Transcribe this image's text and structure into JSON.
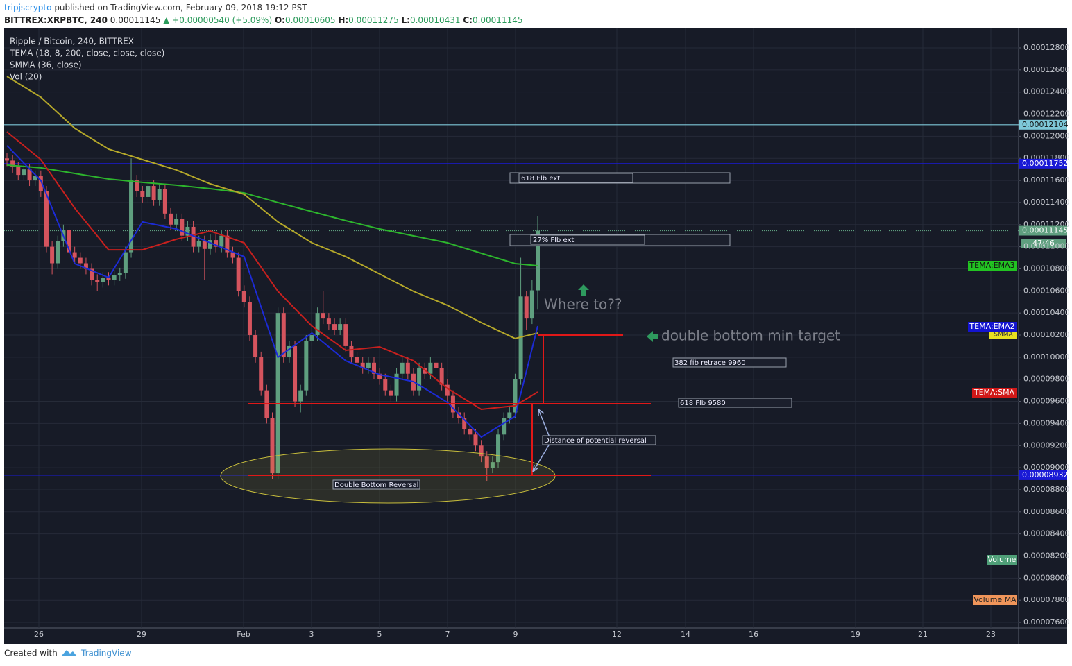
{
  "header": {
    "author": "tripjscrypto",
    "published": "published on TradingView.com, February 09, 2018 19:12 PST",
    "symbol": "BITTREX:XRPBTC, 240",
    "last": "0.00011145",
    "change": "▲ +0.00000540 (+5.09%)",
    "ohlc": [
      {
        "key": "O:",
        "value": "0.00010605"
      },
      {
        "key": "H:",
        "value": "0.00011275"
      },
      {
        "key": "L:",
        "value": "0.00010431"
      },
      {
        "key": "C:",
        "value": "0.00011145"
      }
    ]
  },
  "chart_data": {
    "type": "candlestick",
    "legend": [
      "Ripple / Bitcoin, 240, BITTREX",
      "TEMA (18, 8, 200, close, close, close)",
      "SMMA (36, close)",
      "Vol (20)"
    ],
    "xticks": [
      "26",
      "29",
      "Feb",
      "3",
      "5",
      "7",
      "9",
      "12",
      "14",
      "16",
      "19",
      "21",
      "23"
    ],
    "ylim": [
      7.55e-05,
      0.00012982
    ],
    "yticks": [
      {
        "value": 7.6e-05,
        "label": "0.00007600"
      },
      {
        "value": 7.8e-05,
        "label": "0.00007800"
      },
      {
        "value": 8e-05,
        "label": "0.00008000"
      },
      {
        "value": 8.2e-05,
        "label": "0.00008200"
      },
      {
        "value": 8.4e-05,
        "label": "0.00008400"
      },
      {
        "value": 8.6e-05,
        "label": "0.00008600"
      },
      {
        "value": 8.8e-05,
        "label": "0.00008800"
      },
      {
        "value": 9e-05,
        "label": "0.00009000"
      },
      {
        "value": 9.2e-05,
        "label": "0.00009200"
      },
      {
        "value": 9.4e-05,
        "label": "0.00009400"
      },
      {
        "value": 9.6e-05,
        "label": "0.00009600"
      },
      {
        "value": 9.8e-05,
        "label": "0.00009800"
      },
      {
        "value": 0.0001,
        "label": "0.00010000"
      },
      {
        "value": 0.000102,
        "label": "0.00010200"
      },
      {
        "value": 0.000104,
        "label": "0.00010400"
      },
      {
        "value": 0.000106,
        "label": "0.00010600"
      },
      {
        "value": 0.000108,
        "label": "0.00010800"
      },
      {
        "value": 0.00011,
        "label": "0.00011000"
      },
      {
        "value": 0.000112,
        "label": "0.00011200"
      },
      {
        "value": 0.000114,
        "label": "0.00011400"
      },
      {
        "value": 0.000116,
        "label": "0.00011600"
      },
      {
        "value": 0.000118,
        "label": "0.00011800"
      },
      {
        "value": 0.00012,
        "label": "0.00012000"
      },
      {
        "value": 0.000122,
        "label": "0.00012200"
      },
      {
        "value": 0.000124,
        "label": "0.00012400"
      },
      {
        "value": 0.000126,
        "label": "0.00012600"
      },
      {
        "value": 0.000128,
        "label": "0.00012800"
      }
    ],
    "grid": true,
    "up_color": "#5f9f7f",
    "down_color": "#d5545e",
    "open": [
      0.000118,
      0.0001178,
      0.0001172,
      0.0001165,
      0.000117,
      0.000116,
      0.0001164,
      0.000115,
      0.00011,
      0.0001085,
      0.0001105,
      0.0001115,
      0.0001095,
      0.000109,
      0.0001085,
      0.000108,
      0.000107,
      0.0001068,
      0.0001072,
      0.000107,
      0.0001074,
      0.0001076,
      0.0001095,
      0.000116,
      0.000115,
      0.0001145,
      0.0001155,
      0.0001142,
      0.0001152,
      0.000113,
      0.000112,
      0.0001125,
      0.000111,
      0.0001118,
      0.00011,
      0.0001105,
      0.0001098,
      0.0001106,
      0.00011,
      0.000111,
      0.0001095,
      0.000109,
      0.000106,
      0.000105,
      0.000102,
      0.0001,
      9.7e-05,
      9.45e-05,
      8.95e-05,
      0.000104,
      0.0001,
      0.000101,
      9.6e-05,
      9.7e-05,
      0.0001015,
      0.000102,
      0.000104,
      0.0001035,
      0.000103,
      0.0001025,
      0.000103,
      0.000101,
      0.0001,
      9.95e-05,
      9.9e-05,
      9.95e-05,
      9.85e-05,
      9.8e-05,
      9.7e-05,
      9.65e-05,
      9.85e-05,
      9.95e-05,
      9.85e-05,
      9.7e-05,
      9.9e-05,
      9.85e-05,
      9.95e-05,
      9.9e-05,
      9.75e-05,
      9.65e-05,
      9.5e-05,
      9.45e-05,
      9.35e-05,
      9.3e-05,
      9.2e-05,
      9.1e-05,
      9e-05,
      9.05e-05,
      9.3e-05,
      9.45e-05,
      9.5e-05,
      9.8e-05,
      0.0001055,
      0.0001035,
      0.00010605
    ],
    "high": [
      0.0001185,
      0.0001183,
      0.0001177,
      0.0001175,
      0.0001175,
      0.0001169,
      0.0001169,
      0.0001155,
      0.0001105,
      0.000111,
      0.000112,
      0.000112,
      0.00011,
      0.0001095,
      0.000109,
      0.0001085,
      0.0001075,
      0.0001077,
      0.0001077,
      0.0001079,
      0.0001081,
      0.00011,
      0.000118,
      0.0001165,
      0.0001155,
      0.000116,
      0.000116,
      0.0001157,
      0.0001157,
      0.0001135,
      0.000113,
      0.000113,
      0.0001123,
      0.0001123,
      0.000111,
      0.000111,
      0.0001111,
      0.0001111,
      0.0001115,
      0.0001115,
      0.00011,
      0.0001095,
      0.0001065,
      0.0001055,
      0.0001025,
      0.0001005,
      9.75e-05,
      9.5e-05,
      0.0001045,
      0.0001045,
      0.0001015,
      0.0001015,
      9.75e-05,
      0.000102,
      0.000107,
      0.0001045,
      0.000106,
      0.000104,
      0.0001035,
      0.0001035,
      0.0001035,
      0.0001015,
      0.0001005,
      0.0001,
      0.0001,
      0.0001,
      9.9e-05,
      9.85e-05,
      9.75e-05,
      9.9e-05,
      0.0001,
      0.0001,
      9.9e-05,
      9.95e-05,
      9.95e-05,
      0.0001,
      0.0001,
      9.95e-05,
      9.8e-05,
      9.7e-05,
      9.55e-05,
      9.5e-05,
      9.4e-05,
      9.35e-05,
      9.25e-05,
      9.15e-05,
      9.1e-05,
      9.35e-05,
      9.5e-05,
      9.55e-05,
      9.85e-05,
      0.000109,
      0.000106,
      0.000107,
      0.00011275
    ],
    "low": [
      0.0001173,
      0.0001167,
      0.000116,
      0.000116,
      0.0001155,
      0.0001155,
      0.0001145,
      0.0001095,
      0.0001075,
      0.000108,
      0.00011,
      0.000109,
      0.0001085,
      0.000108,
      0.0001075,
      0.0001065,
      0.000106,
      0.0001063,
      0.0001065,
      0.0001065,
      0.0001069,
      0.0001071,
      0.000109,
      0.0001145,
      0.000114,
      0.000114,
      0.0001137,
      0.0001137,
      0.0001125,
      0.0001115,
      0.0001115,
      0.0001105,
      0.0001105,
      0.0001095,
      0.0001095,
      0.000107,
      0.0001093,
      0.0001095,
      0.0001095,
      0.000109,
      0.0001085,
      0.0001055,
      0.0001045,
      0.0001015,
      9.95e-05,
      9.65e-05,
      9.4e-05,
      8.9e-05,
      8.9e-05,
      9.95e-05,
      9.95e-05,
      9.55e-05,
      9.5e-05,
      9.65e-05,
      0.000101,
      0.0001015,
      0.000103,
      0.0001025,
      0.000102,
      0.000102,
      0.0001005,
      9.95e-05,
      9.9e-05,
      9.85e-05,
      9.85e-05,
      9.8e-05,
      9.75e-05,
      9.65e-05,
      9.6e-05,
      9.6e-05,
      9.8e-05,
      9.8e-05,
      9.65e-05,
      9.65e-05,
      9.8e-05,
      9.8e-05,
      9.85e-05,
      9.7e-05,
      9.6e-05,
      9.45e-05,
      9.4e-05,
      9.3e-05,
      9.25e-05,
      9.15e-05,
      9.05e-05,
      8.88e-05,
      8.95e-05,
      9e-05,
      9.25e-05,
      9.4e-05,
      9.45e-05,
      9.75e-05,
      0.0001025,
      0.000103,
      0.00010431
    ],
    "close": [
      0.0001178,
      0.0001172,
      0.0001165,
      0.000117,
      0.000116,
      0.0001164,
      0.000115,
      0.00011,
      0.0001085,
      0.0001105,
      0.0001115,
      0.0001095,
      0.000109,
      0.0001085,
      0.000108,
      0.000107,
      0.0001068,
      0.0001072,
      0.000107,
      0.0001074,
      0.0001076,
      0.0001095,
      0.000116,
      0.000115,
      0.0001145,
      0.0001155,
      0.0001142,
      0.0001152,
      0.000113,
      0.000112,
      0.0001125,
      0.000111,
      0.0001118,
      0.00011,
      0.0001105,
      0.0001098,
      0.0001106,
      0.00011,
      0.000111,
      0.0001095,
      0.000109,
      0.000106,
      0.000105,
      0.000102,
      0.0001,
      9.7e-05,
      9.45e-05,
      8.95e-05,
      0.000104,
      0.0001,
      0.000101,
      9.6e-05,
      9.7e-05,
      0.0001015,
      0.000102,
      0.000104,
      0.0001035,
      0.000103,
      0.0001025,
      0.000103,
      0.000101,
      0.0001,
      9.95e-05,
      9.9e-05,
      9.95e-05,
      9.85e-05,
      9.8e-05,
      9.7e-05,
      9.65e-05,
      9.85e-05,
      9.95e-05,
      9.85e-05,
      9.7e-05,
      9.9e-05,
      9.85e-05,
      9.95e-05,
      9.9e-05,
      9.75e-05,
      9.65e-05,
      9.5e-05,
      9.45e-05,
      9.35e-05,
      9.3e-05,
      9.2e-05,
      9.1e-05,
      9e-05,
      9.05e-05,
      9.3e-05,
      9.45e-05,
      9.5e-05,
      9.8e-05,
      0.0001055,
      0.0001035,
      0.00010605,
      0.00011145
    ],
    "series": [
      {
        "name": "TEMA:EMA3",
        "color": "#2db52d",
        "values": [
          0.00011739,
          0.00011714,
          0.00011663,
          0.00011613,
          0.00011582,
          0.00011557,
          0.00011525,
          0.00011487,
          0.000114,
          0.00011318,
          0.00011236,
          0.00011161,
          0.00011098,
          0.00011035,
          0.00010941,
          0.00010847,
          0.00010828
        ]
      },
      {
        "name": "SMMA",
        "color": "#b5a82a",
        "values": [
          0.00012542,
          0.00012354,
          0.00012072,
          0.00011883,
          0.00011789,
          0.00011695,
          0.00011569,
          0.00011475,
          0.00011224,
          0.00011035,
          0.0001091,
          0.00010753,
          0.00010596,
          0.0001047,
          0.00010313,
          0.00010169,
          0.00010219
        ]
      },
      {
        "name": "TEMA:SMA",
        "color": "#c8201e",
        "values": [
          0.0001204,
          0.00011789,
          0.00011349,
          0.00010972,
          0.00010972,
          0.00011067,
          0.00011142,
          0.00011035,
          0.00010596,
          0.00010282,
          0.00010062,
          0.00010093,
          9.968e-05,
          9.717e-05,
          9.528e-05,
          9.56e-05,
          9.685e-05
        ]
      },
      {
        "name": "TEMA:EMA2",
        "color": "#1c2bd6",
        "values": [
          0.00011915,
          0.000116,
          0.00010847,
          0.00010721,
          0.00011224,
          0.00011161,
          0.00011035,
          0.0001091,
          0.0001,
          0.00010219,
          9.968e-05,
          9.842e-05,
          9.779e-05,
          9.591e-05,
          9.277e-05,
          9.465e-05,
          0.00010282
        ]
      }
    ],
    "price_lines": [
      {
        "value": 0.00012104,
        "label": "0.00012104",
        "color": "#7ec8d8"
      },
      {
        "value": 0.00011752,
        "label": "0.00011752",
        "color": "#1a1ad6"
      },
      {
        "value": 0.00011145,
        "label": "0.00011145",
        "color": "#5f9f7f"
      },
      {
        "value": 8.932e-05,
        "label": "0.00008932",
        "color": "#1a1ad6"
      }
    ],
    "countdown": "47:46",
    "side_tags": [
      "TEMA:EMA3",
      "TEMA:EMA2",
      "SMMA",
      "TEMA:SMA",
      "Volume",
      "Volume MA"
    ],
    "annotations": [
      "618 Flb ext",
      "27% Flb ext",
      "Where to??",
      "double bottom min target",
      "382 fib retrace 9960",
      "618 Flb 9580",
      "Distance of potential reversal",
      "Double Bottom Reversal"
    ]
  },
  "footer": {
    "created": "Created with",
    "brand": "TradingView"
  }
}
